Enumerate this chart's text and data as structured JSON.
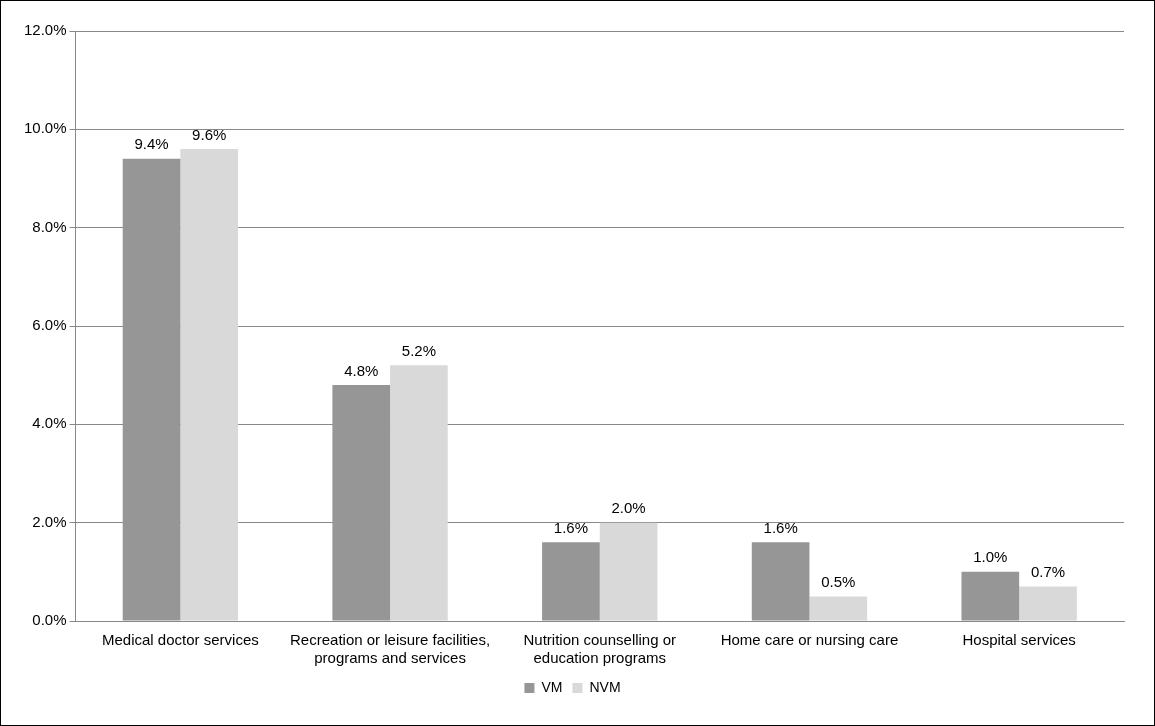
{
  "chart_data": {
    "type": "bar",
    "categories": [
      "Medical doctor services",
      "Recreation or leisure facilities, programs and services",
      "Nutrition counselling or education programs",
      "Home care or nursing care",
      "Hospital services"
    ],
    "series": [
      {
        "name": "VM",
        "color": "#969696",
        "values": [
          9.4,
          4.8,
          1.6,
          1.6,
          1.0
        ],
        "value_labels": [
          "9.4%",
          "4.8%",
          "1.6%",
          "1.6%",
          "1.0%"
        ]
      },
      {
        "name": "NVM",
        "color": "#d9d9d9",
        "values": [
          9.6,
          5.2,
          2.0,
          0.5,
          0.7
        ],
        "value_labels": [
          "9.6%",
          "5.2%",
          "2.0%",
          "0.5%",
          "0.7%"
        ]
      }
    ],
    "ylim": [
      0,
      12
    ],
    "yticks": [
      {
        "value": 0,
        "label": "0.0%"
      },
      {
        "value": 2,
        "label": "2.0%"
      },
      {
        "value": 4,
        "label": "4.0%"
      },
      {
        "value": 6,
        "label": "6.0%"
      },
      {
        "value": 8,
        "label": "8.0%"
      },
      {
        "value": 10,
        "label": "10.0%"
      },
      {
        "value": 12,
        "label": "12.0%"
      }
    ],
    "grid": "y",
    "legend": "bottom"
  }
}
